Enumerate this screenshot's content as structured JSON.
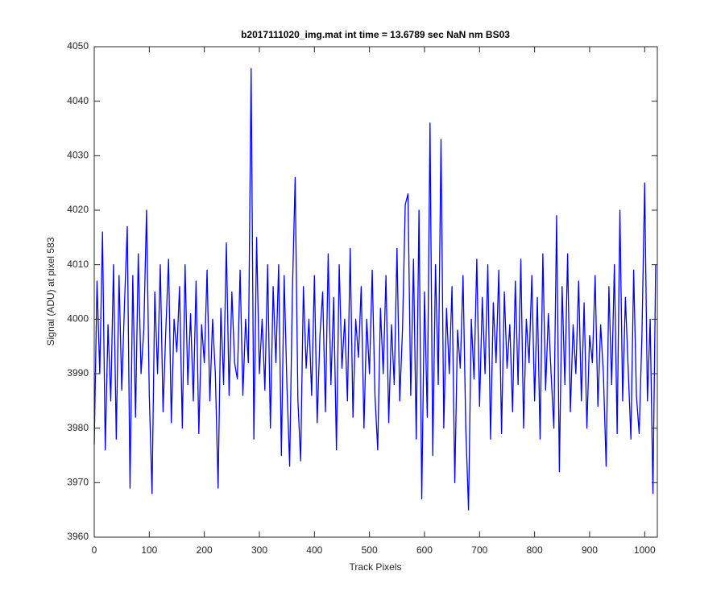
{
  "chart_data": {
    "type": "line",
    "title": "b2017111020_img.mat int time = 13.6789 sec  NaN nm BS03",
    "x_label": "Track Pixels",
    "y_label": "Signal (ADU) at pixel 583",
    "color": "#0000ff",
    "xlim": [
      0,
      1023
    ],
    "ylim": [
      3960,
      4050
    ],
    "xticks": [
      0,
      100,
      200,
      300,
      400,
      500,
      600,
      700,
      800,
      900,
      1000
    ],
    "yticks": [
      3960,
      3970,
      3980,
      3990,
      4000,
      4010,
      4020,
      4030,
      4040,
      4050
    ],
    "grid": false,
    "x": [
      0,
      5,
      10,
      15,
      20,
      25,
      30,
      35,
      40,
      45,
      50,
      55,
      60,
      65,
      70,
      75,
      80,
      85,
      90,
      95,
      100,
      105,
      110,
      115,
      120,
      125,
      130,
      135,
      140,
      145,
      150,
      155,
      160,
      165,
      170,
      175,
      180,
      185,
      190,
      195,
      200,
      205,
      210,
      215,
      220,
      225,
      230,
      235,
      240,
      245,
      250,
      255,
      260,
      265,
      270,
      275,
      280,
      285,
      290,
      295,
      300,
      305,
      310,
      315,
      320,
      325,
      330,
      335,
      340,
      345,
      350,
      355,
      360,
      365,
      370,
      375,
      380,
      385,
      390,
      395,
      400,
      405,
      410,
      415,
      420,
      425,
      430,
      435,
      440,
      445,
      450,
      455,
      460,
      465,
      470,
      475,
      480,
      485,
      490,
      495,
      500,
      505,
      510,
      515,
      520,
      525,
      530,
      535,
      540,
      545,
      550,
      555,
      560,
      565,
      570,
      575,
      580,
      585,
      590,
      595,
      600,
      605,
      610,
      615,
      620,
      625,
      630,
      635,
      640,
      645,
      650,
      655,
      660,
      665,
      670,
      675,
      680,
      685,
      690,
      695,
      700,
      705,
      710,
      715,
      720,
      725,
      730,
      735,
      740,
      745,
      750,
      755,
      760,
      765,
      770,
      775,
      780,
      785,
      790,
      795,
      800,
      805,
      810,
      815,
      820,
      825,
      830,
      835,
      840,
      845,
      850,
      855,
      860,
      865,
      870,
      875,
      880,
      885,
      890,
      895,
      900,
      905,
      910,
      915,
      920,
      925,
      930,
      935,
      940,
      945,
      950,
      955,
      960,
      965,
      970,
      975,
      980,
      985,
      990,
      995,
      1000,
      1005,
      1010,
      1015,
      1020
    ],
    "values": [
      3977,
      4007,
      3990,
      4016,
      3976,
      3999,
      3985,
      4010,
      3978,
      4008,
      3987,
      4003,
      4017,
      3969,
      4008,
      3982,
      4012,
      3990,
      3998,
      4020,
      3986,
      3968,
      4005,
      3990,
      4010,
      3983,
      3998,
      4011,
      3981,
      4000,
      3994,
      4006,
      3980,
      4010,
      3988,
      4001,
      3985,
      4007,
      3979,
      3999,
      3992,
      4009,
      3985,
      4000,
      3990,
      3969,
      4002,
      3988,
      4014,
      3986,
      4005,
      3992,
      3989,
      4009,
      3986,
      4000,
      3992,
      4046,
      3978,
      4015,
      3990,
      4000,
      3987,
      4010,
      3980,
      4006,
      3992,
      4010,
      3975,
      4008,
      3988,
      3973,
      4005,
      4026,
      3985,
      3974,
      4006,
      3991,
      4000,
      3986,
      4008,
      3981,
      3997,
      4005,
      3983,
      4012,
      3988,
      4004,
      3976,
      4010,
      3991,
      4000,
      3985,
      4013,
      3982,
      4000,
      3993,
      4006,
      3980,
      4000,
      3990,
      4009,
      3986,
      3976,
      4002,
      3990,
      4008,
      3981,
      3999,
      3988,
      4013,
      3985,
      3998,
      4021,
      4023,
      3986,
      4011,
      3978,
      4020,
      3967,
      4005,
      3982,
      4036,
      3975,
      4010,
      3988,
      4033,
      3980,
      4002,
      3990,
      4006,
      3970,
      3998,
      3991,
      4008,
      3980,
      3965,
      4000,
      3989,
      4011,
      3984,
      4004,
      3990,
      4010,
      3978,
      4003,
      3992,
      4009,
      3979,
      4005,
      3991,
      3999,
      3983,
      4007,
      3988,
      4011,
      3980,
      4000,
      3992,
      4008,
      3985,
      4004,
      3978,
      4012,
      3987,
      4001,
      3990,
      3980,
      4019,
      3972,
      4006,
      3988,
      4012,
      3983,
      3999,
      3990,
      4007,
      3985,
      4003,
      3980,
      3997,
      3992,
      4008,
      3984,
      3999,
      3990,
      3973,
      4006,
      3988,
      4010,
      3979,
      4020,
      3985,
      4004,
      3991,
      3978,
      4009,
      3986,
      3979,
      3997,
      4025,
      3985,
      4000,
      3968,
      4010
    ]
  }
}
